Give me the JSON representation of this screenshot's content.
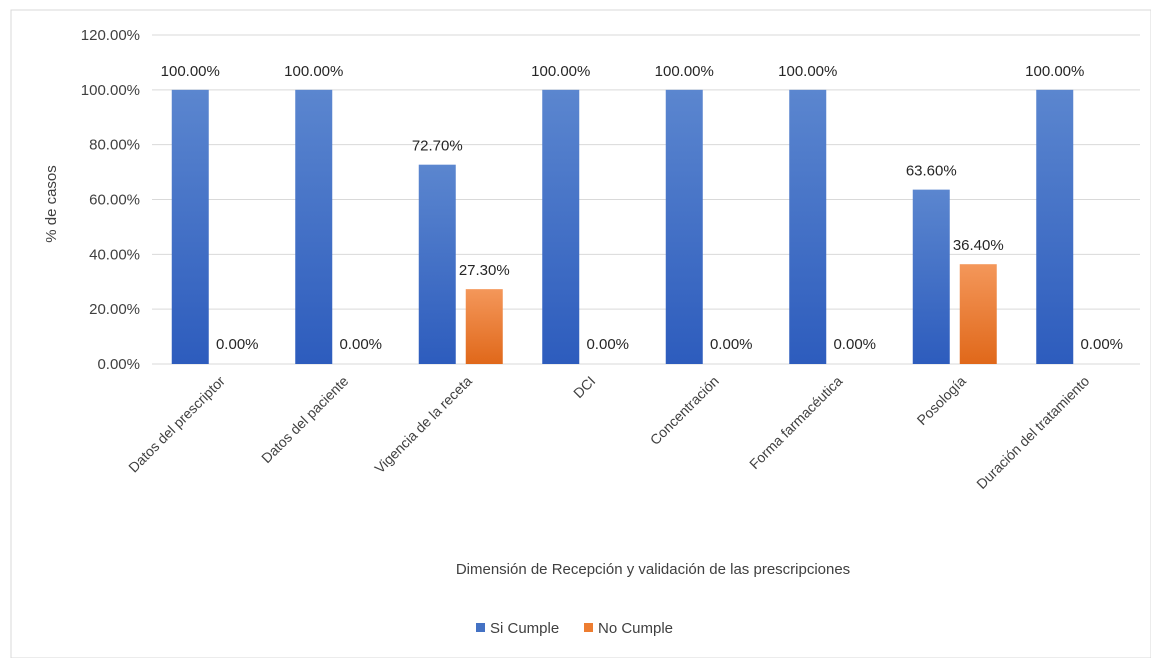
{
  "chart_data": {
    "type": "bar",
    "title": "",
    "xlabel": "Dimensión de Recepción y validación de las prescripciones",
    "ylabel": "% de casos",
    "ylim": [
      0,
      120
    ],
    "yticks": [
      "0.00%",
      "20.00%",
      "40.00%",
      "60.00%",
      "80.00%",
      "100.00%",
      "120.00%"
    ],
    "grid": true,
    "legend_position": "bottom",
    "categories": [
      "Datos del prescriptor",
      "Datos del paciente",
      "Vigencia de la receta",
      "DCI",
      "Concentración",
      "Forma farmacéutica",
      "Posología",
      "Duración del tratamiento"
    ],
    "series": [
      {
        "name": "Si Cumple",
        "color": "#4472c4",
        "values": [
          100,
          100,
          72.7,
          100,
          100,
          100,
          63.6,
          100
        ],
        "labels": [
          "100.00%",
          "100.00%",
          "72.70%",
          "100.00%",
          "100.00%",
          "100.00%",
          "63.60%",
          "100.00%"
        ]
      },
      {
        "name": "No Cumple",
        "color": "#ed7d31",
        "values": [
          0,
          0,
          27.3,
          0,
          0,
          0,
          36.4,
          0
        ],
        "labels": [
          "0.00%",
          "0.00%",
          "27.30%",
          "0.00%",
          "0.00%",
          "0.00%",
          "36.40%",
          "0.00%"
        ]
      }
    ]
  }
}
